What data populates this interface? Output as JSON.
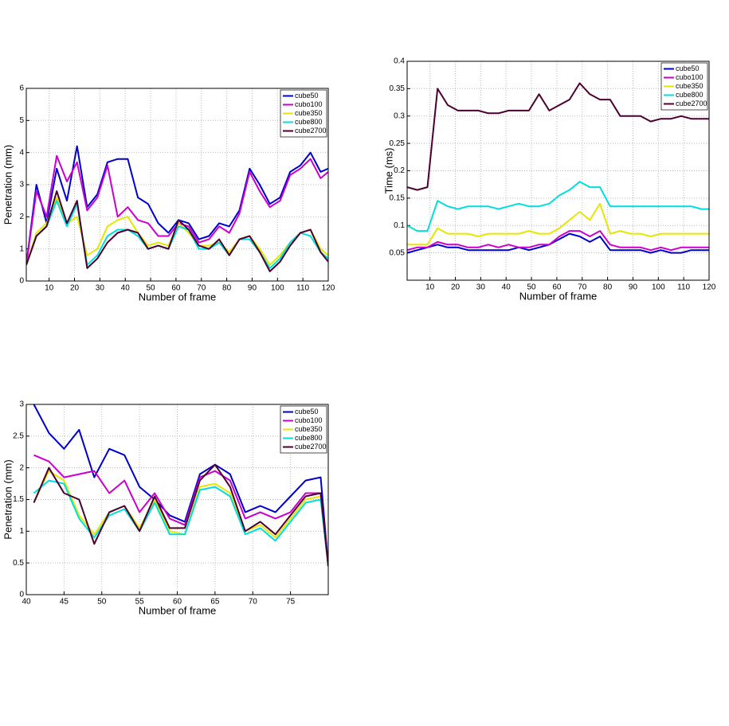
{
  "chart_data": [
    {
      "type": "line",
      "xlabel": "Number of frame",
      "ylabel": "Penetration (mm)",
      "x": [
        1,
        5,
        9,
        13,
        17,
        21,
        25,
        29,
        33,
        37,
        41,
        45,
        49,
        53,
        57,
        61,
        65,
        69,
        73,
        77,
        81,
        85,
        89,
        93,
        97,
        101,
        105,
        109,
        113,
        117,
        120
      ],
      "xlim": [
        1,
        120
      ],
      "xticks": [
        10,
        20,
        30,
        40,
        50,
        60,
        70,
        80,
        90,
        100,
        110,
        120
      ],
      "ylim": [
        0,
        6
      ],
      "yticks": [
        0,
        1,
        2,
        3,
        4,
        5,
        6
      ],
      "grid": true,
      "legend": "upper-right",
      "series": [
        {
          "name": "cube50",
          "color": "#0000cc",
          "values": [
            0.5,
            3.0,
            1.8,
            3.5,
            2.5,
            4.2,
            2.3,
            2.7,
            3.7,
            3.8,
            3.8,
            2.6,
            2.4,
            1.8,
            1.5,
            1.9,
            1.8,
            1.3,
            1.4,
            1.8,
            1.7,
            2.2,
            3.5,
            3.0,
            2.4,
            2.6,
            3.4,
            3.6,
            4.0,
            3.4,
            3.5
          ]
        },
        {
          "name": "cubo100",
          "color": "#cc00cc",
          "values": [
            0.5,
            2.8,
            2.0,
            3.9,
            3.1,
            3.7,
            2.2,
            2.6,
            3.6,
            2.0,
            2.3,
            1.9,
            1.8,
            1.4,
            1.4,
            1.8,
            1.7,
            1.2,
            1.3,
            1.7,
            1.5,
            2.1,
            3.4,
            2.8,
            2.3,
            2.5,
            3.3,
            3.5,
            3.8,
            3.2,
            3.4
          ]
        },
        {
          "name": "cube350",
          "color": "#e6e600",
          "values": [
            0.5,
            1.5,
            1.8,
            2.6,
            1.8,
            2.0,
            0.8,
            1.0,
            1.7,
            1.9,
            2.0,
            1.5,
            1.1,
            1.2,
            1.1,
            1.8,
            1.5,
            1.1,
            1.1,
            1.2,
            0.9,
            1.3,
            1.4,
            1.0,
            0.5,
            0.8,
            1.2,
            1.5,
            1.6,
            1.0,
            0.8
          ]
        },
        {
          "name": "cube800",
          "color": "#00dede",
          "values": [
            0.5,
            1.4,
            1.7,
            2.5,
            1.7,
            2.4,
            0.5,
            0.8,
            1.4,
            1.6,
            1.6,
            1.4,
            1.0,
            1.1,
            1.0,
            1.7,
            1.6,
            1.0,
            1.0,
            1.2,
            0.8,
            1.3,
            1.3,
            0.9,
            0.4,
            0.7,
            1.2,
            1.5,
            1.4,
            0.9,
            0.7
          ]
        },
        {
          "name": "cube2700",
          "color": "#4b0030",
          "values": [
            0.5,
            1.4,
            1.7,
            2.8,
            1.8,
            2.5,
            0.4,
            0.7,
            1.2,
            1.5,
            1.6,
            1.5,
            1.0,
            1.1,
            1.0,
            1.9,
            1.6,
            1.1,
            1.0,
            1.3,
            0.8,
            1.3,
            1.4,
            0.9,
            0.3,
            0.6,
            1.1,
            1.5,
            1.6,
            0.9,
            0.6
          ]
        }
      ]
    },
    {
      "type": "line",
      "xlabel": "Number of frame",
      "ylabel": "Time (ms)",
      "x": [
        1,
        5,
        9,
        13,
        17,
        21,
        25,
        29,
        33,
        37,
        41,
        45,
        49,
        53,
        57,
        61,
        65,
        69,
        73,
        77,
        81,
        85,
        89,
        93,
        97,
        101,
        105,
        109,
        113,
        117,
        120
      ],
      "xlim": [
        1,
        120
      ],
      "xticks": [
        10,
        20,
        30,
        40,
        50,
        60,
        70,
        80,
        90,
        100,
        110,
        120
      ],
      "ylim": [
        0,
        0.4
      ],
      "yticks": [
        0.05,
        0.1,
        0.15,
        0.2,
        0.25,
        0.3,
        0.35,
        0.4
      ],
      "grid": true,
      "legend": "upper-right",
      "series": [
        {
          "name": "cube50",
          "color": "#0000cc",
          "values": [
            0.05,
            0.055,
            0.06,
            0.065,
            0.06,
            0.06,
            0.055,
            0.055,
            0.055,
            0.055,
            0.055,
            0.06,
            0.055,
            0.06,
            0.065,
            0.075,
            0.085,
            0.08,
            0.07,
            0.08,
            0.055,
            0.055,
            0.055,
            0.055,
            0.05,
            0.055,
            0.05,
            0.05,
            0.055,
            0.055,
            0.055
          ]
        },
        {
          "name": "cubo100",
          "color": "#cc00cc",
          "values": [
            0.055,
            0.06,
            0.06,
            0.07,
            0.065,
            0.065,
            0.06,
            0.06,
            0.065,
            0.06,
            0.065,
            0.06,
            0.06,
            0.065,
            0.065,
            0.08,
            0.09,
            0.09,
            0.08,
            0.09,
            0.065,
            0.06,
            0.06,
            0.06,
            0.055,
            0.06,
            0.055,
            0.06,
            0.06,
            0.06,
            0.06
          ]
        },
        {
          "name": "cube350",
          "color": "#e6e600",
          "values": [
            0.065,
            0.065,
            0.065,
            0.095,
            0.085,
            0.085,
            0.085,
            0.08,
            0.085,
            0.085,
            0.085,
            0.085,
            0.09,
            0.085,
            0.085,
            0.095,
            0.11,
            0.125,
            0.11,
            0.14,
            0.085,
            0.09,
            0.085,
            0.085,
            0.08,
            0.085,
            0.085,
            0.085,
            0.085,
            0.085,
            0.085
          ]
        },
        {
          "name": "cube800",
          "color": "#00dede",
          "values": [
            0.1,
            0.09,
            0.09,
            0.145,
            0.135,
            0.13,
            0.135,
            0.135,
            0.135,
            0.13,
            0.135,
            0.14,
            0.135,
            0.135,
            0.14,
            0.155,
            0.165,
            0.18,
            0.17,
            0.17,
            0.135,
            0.135,
            0.135,
            0.135,
            0.135,
            0.135,
            0.135,
            0.135,
            0.135,
            0.13,
            0.13
          ]
        },
        {
          "name": "cube2700",
          "color": "#4b0030",
          "values": [
            0.17,
            0.165,
            0.17,
            0.35,
            0.32,
            0.31,
            0.31,
            0.31,
            0.305,
            0.305,
            0.31,
            0.31,
            0.31,
            0.34,
            0.31,
            0.32,
            0.33,
            0.36,
            0.34,
            0.33,
            0.33,
            0.3,
            0.3,
            0.3,
            0.29,
            0.295,
            0.295,
            0.3,
            0.295,
            0.295,
            0.295
          ]
        }
      ]
    },
    {
      "type": "line",
      "xlabel": "Number of frame",
      "ylabel": "Penetration (mm)",
      "x": [
        41,
        43,
        45,
        47,
        49,
        51,
        53,
        55,
        57,
        59,
        61,
        63,
        65,
        67,
        69,
        71,
        73,
        75,
        77,
        79,
        80
      ],
      "xlim": [
        40,
        80
      ],
      "xticks": [
        40,
        45,
        50,
        55,
        60,
        65,
        70,
        75
      ],
      "ylim": [
        0,
        3
      ],
      "yticks": [
        0,
        0.5,
        1,
        1.5,
        2,
        2.5,
        3
      ],
      "grid": true,
      "legend": "upper-right",
      "series": [
        {
          "name": "cube50",
          "color": "#0000cc",
          "values": [
            3.0,
            2.55,
            2.3,
            2.6,
            1.85,
            2.3,
            2.2,
            1.7,
            1.5,
            1.25,
            1.15,
            1.9,
            2.05,
            1.9,
            1.3,
            1.4,
            1.3,
            1.55,
            1.8,
            1.85,
            0.45
          ]
        },
        {
          "name": "cubo100",
          "color": "#cc00cc",
          "values": [
            2.2,
            2.1,
            1.85,
            1.9,
            1.95,
            1.6,
            1.8,
            1.3,
            1.6,
            1.2,
            1.1,
            1.85,
            1.95,
            1.8,
            1.2,
            1.3,
            1.2,
            1.3,
            1.6,
            1.6,
            0.45
          ]
        },
        {
          "name": "cube350",
          "color": "#e6e600",
          "values": [
            1.45,
            1.95,
            1.8,
            1.25,
            0.95,
            1.3,
            1.4,
            1.05,
            1.5,
            1.0,
            0.95,
            1.7,
            1.75,
            1.6,
            1.0,
            1.1,
            0.9,
            1.2,
            1.5,
            1.55,
            0.45
          ]
        },
        {
          "name": "cube800",
          "color": "#00dede",
          "values": [
            1.6,
            1.8,
            1.75,
            1.2,
            0.9,
            1.25,
            1.35,
            1.0,
            1.45,
            0.95,
            0.95,
            1.65,
            1.7,
            1.55,
            0.95,
            1.05,
            0.85,
            1.15,
            1.45,
            1.5,
            0.45
          ]
        },
        {
          "name": "cube2700",
          "color": "#4b0030",
          "values": [
            1.45,
            2.0,
            1.6,
            1.5,
            0.8,
            1.3,
            1.4,
            1.0,
            1.55,
            1.05,
            1.05,
            1.8,
            2.05,
            1.7,
            1.0,
            1.15,
            0.95,
            1.25,
            1.55,
            1.6,
            0.45
          ]
        }
      ]
    }
  ]
}
